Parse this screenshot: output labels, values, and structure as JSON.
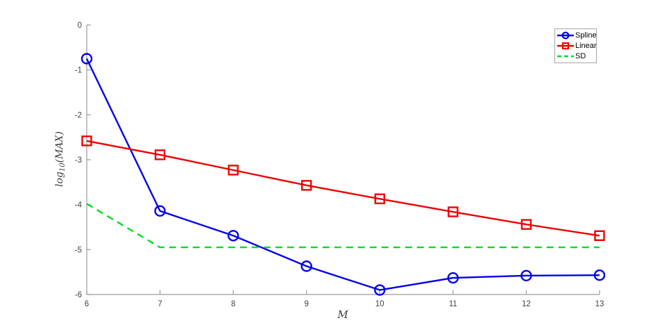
{
  "chart_data": {
    "type": "line",
    "title": "",
    "xlabel": "M",
    "ylabel": "log10(MAX)",
    "ylabel_parts": {
      "prefix": "log",
      "sub": "10",
      "suffix": "(MAX)"
    },
    "x": [
      6,
      7,
      8,
      9,
      10,
      11,
      12,
      13
    ],
    "xlim": [
      6,
      13
    ],
    "ylim": [
      -6,
      0
    ],
    "x_ticks": [
      "6",
      "7",
      "8",
      "9",
      "10",
      "11",
      "12",
      "13"
    ],
    "y_ticks": [
      "0",
      "-1",
      "-2",
      "-3",
      "-4",
      "-5",
      "-6"
    ],
    "grid": false,
    "legend_position": "top-right",
    "axis_color": "#9a9a9a",
    "tick_label_color": "#3f3f3f",
    "series": [
      {
        "name": "Spline",
        "color": "#0000f0",
        "marker": "circle",
        "line_style": "solid",
        "values": [
          -0.75,
          -4.14,
          -4.69,
          -5.37,
          -5.9,
          -5.63,
          -5.58,
          -5.57
        ]
      },
      {
        "name": "Linear",
        "color": "#f00000",
        "marker": "square",
        "line_style": "solid",
        "values": [
          -2.58,
          -2.89,
          -3.23,
          -3.57,
          -3.87,
          -4.16,
          -4.44,
          -4.69
        ]
      },
      {
        "name": "SD",
        "color": "#00dd22",
        "marker": "none",
        "line_style": "dashed",
        "values": [
          -3.98,
          -4.95,
          -4.95,
          -4.95,
          -4.95,
          -4.95,
          -4.95,
          -4.95
        ]
      }
    ]
  }
}
